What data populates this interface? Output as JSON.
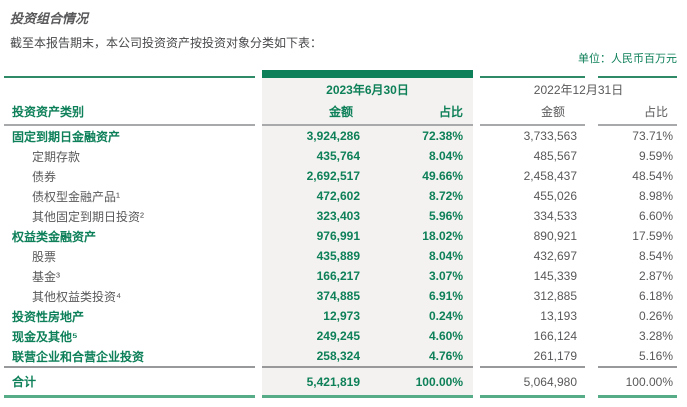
{
  "page": {
    "title": "投资组合情况",
    "intro": "截至本报告期末，本公司投资资产按投资对象分类如下表：",
    "unit_label": "单位：人民币百万元"
  },
  "colors": {
    "green": "#0E8059",
    "ruleGreen": "#2E8A67",
    "bottomGreen": "#55AC86",
    "gray": "#59595B",
    "grayRule": "#A8A9AB",
    "grayRule2": "#98999B",
    "bg23": "#F3F2F0"
  },
  "table": {
    "category_header": "投资资产类别",
    "period_groups": [
      {
        "label": "2023年6月30日",
        "amount_header": "金额",
        "pct_header": "占比"
      },
      {
        "label": "2022年12月31日",
        "amount_header": "金额",
        "pct_header": "占比"
      }
    ],
    "rows": [
      {
        "label": "固定到期日金融资产",
        "level": "parent",
        "amount_2023": "3,924,286",
        "pct_2023": "72.38%",
        "amount_2022": "3,733,563",
        "pct_2022": "73.71%"
      },
      {
        "label": "定期存款",
        "level": "sub",
        "amount_2023": "435,764",
        "pct_2023": "8.04%",
        "amount_2022": "485,567",
        "pct_2022": "9.59%"
      },
      {
        "label": "债券",
        "level": "sub",
        "amount_2023": "2,692,517",
        "pct_2023": "49.66%",
        "amount_2022": "2,458,437",
        "pct_2022": "48.54%"
      },
      {
        "label": "债权型金融产品¹",
        "level": "sub",
        "amount_2023": "472,602",
        "pct_2023": "8.72%",
        "amount_2022": "455,026",
        "pct_2022": "8.98%"
      },
      {
        "label": "其他固定到期日投资²",
        "level": "sub",
        "amount_2023": "323,403",
        "pct_2023": "5.96%",
        "amount_2022": "334,533",
        "pct_2022": "6.60%"
      },
      {
        "label": "权益类金融资产",
        "level": "parent",
        "amount_2023": "976,991",
        "pct_2023": "18.02%",
        "amount_2022": "890,921",
        "pct_2022": "17.59%"
      },
      {
        "label": "股票",
        "level": "sub",
        "amount_2023": "435,889",
        "pct_2023": "8.04%",
        "amount_2022": "432,697",
        "pct_2022": "8.54%"
      },
      {
        "label": "基金³",
        "level": "sub",
        "amount_2023": "166,217",
        "pct_2023": "3.07%",
        "amount_2022": "145,339",
        "pct_2022": "2.87%"
      },
      {
        "label": "其他权益类投资⁴",
        "level": "sub",
        "amount_2023": "374,885",
        "pct_2023": "6.91%",
        "amount_2022": "312,885",
        "pct_2022": "6.18%"
      },
      {
        "label": "投资性房地产",
        "level": "parent",
        "amount_2023": "12,973",
        "pct_2023": "0.24%",
        "amount_2022": "13,193",
        "pct_2022": "0.26%"
      },
      {
        "label": "现金及其他⁵",
        "level": "parent",
        "amount_2023": "249,245",
        "pct_2023": "4.60%",
        "amount_2022": "166,124",
        "pct_2022": "3.28%"
      },
      {
        "label": "联营企业和合营企业投资",
        "level": "parent",
        "amount_2023": "258,324",
        "pct_2023": "4.76%",
        "amount_2022": "261,179",
        "pct_2022": "5.16%"
      }
    ],
    "total_row": {
      "label": "合计",
      "amount_2023": "5,421,819",
      "pct_2023": "100.00%",
      "amount_2022": "5,064,980",
      "pct_2022": "100.00%"
    }
  }
}
